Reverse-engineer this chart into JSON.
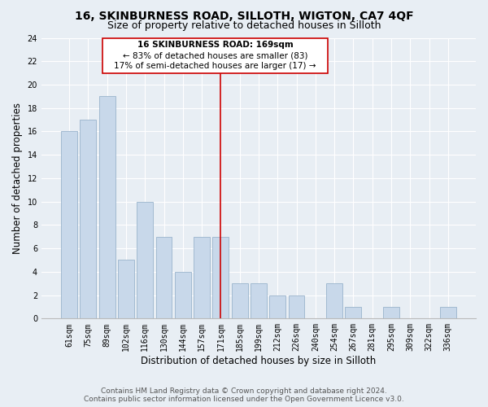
{
  "title": "16, SKINBURNESS ROAD, SILLOTH, WIGTON, CA7 4QF",
  "subtitle": "Size of property relative to detached houses in Silloth",
  "xlabel": "Distribution of detached houses by size in Silloth",
  "ylabel": "Number of detached properties",
  "bar_labels": [
    "61sqm",
    "75sqm",
    "89sqm",
    "102sqm",
    "116sqm",
    "130sqm",
    "144sqm",
    "157sqm",
    "171sqm",
    "185sqm",
    "199sqm",
    "212sqm",
    "226sqm",
    "240sqm",
    "254sqm",
    "267sqm",
    "281sqm",
    "295sqm",
    "309sqm",
    "322sqm",
    "336sqm"
  ],
  "bar_values": [
    16,
    17,
    19,
    5,
    10,
    7,
    4,
    7,
    7,
    3,
    3,
    2,
    2,
    0,
    3,
    1,
    0,
    1,
    0,
    0,
    1
  ],
  "bar_color": "#c8d8ea",
  "bar_edge_color": "#9ab4cc",
  "highlight_index": 8,
  "highlight_line_color": "#cc0000",
  "ylim": [
    0,
    24
  ],
  "yticks": [
    0,
    2,
    4,
    6,
    8,
    10,
    12,
    14,
    16,
    18,
    20,
    22,
    24
  ],
  "annotation_text_line1": "16 SKINBURNESS ROAD: 169sqm",
  "annotation_text_line2": "← 83% of detached houses are smaller (83)",
  "annotation_text_line3": "17% of semi-detached houses are larger (17) →",
  "annotation_box_color": "#ffffff",
  "annotation_box_edge": "#cc0000",
  "footer_line1": "Contains HM Land Registry data © Crown copyright and database right 2024.",
  "footer_line2": "Contains public sector information licensed under the Open Government Licence v3.0.",
  "bg_color": "#e8eef4",
  "plot_bg_color": "#e8eef4",
  "grid_color": "#ffffff",
  "title_fontsize": 10,
  "subtitle_fontsize": 9,
  "axis_label_fontsize": 8.5,
  "tick_fontsize": 7,
  "footer_fontsize": 6.5,
  "ann_fontsize": 7.5
}
